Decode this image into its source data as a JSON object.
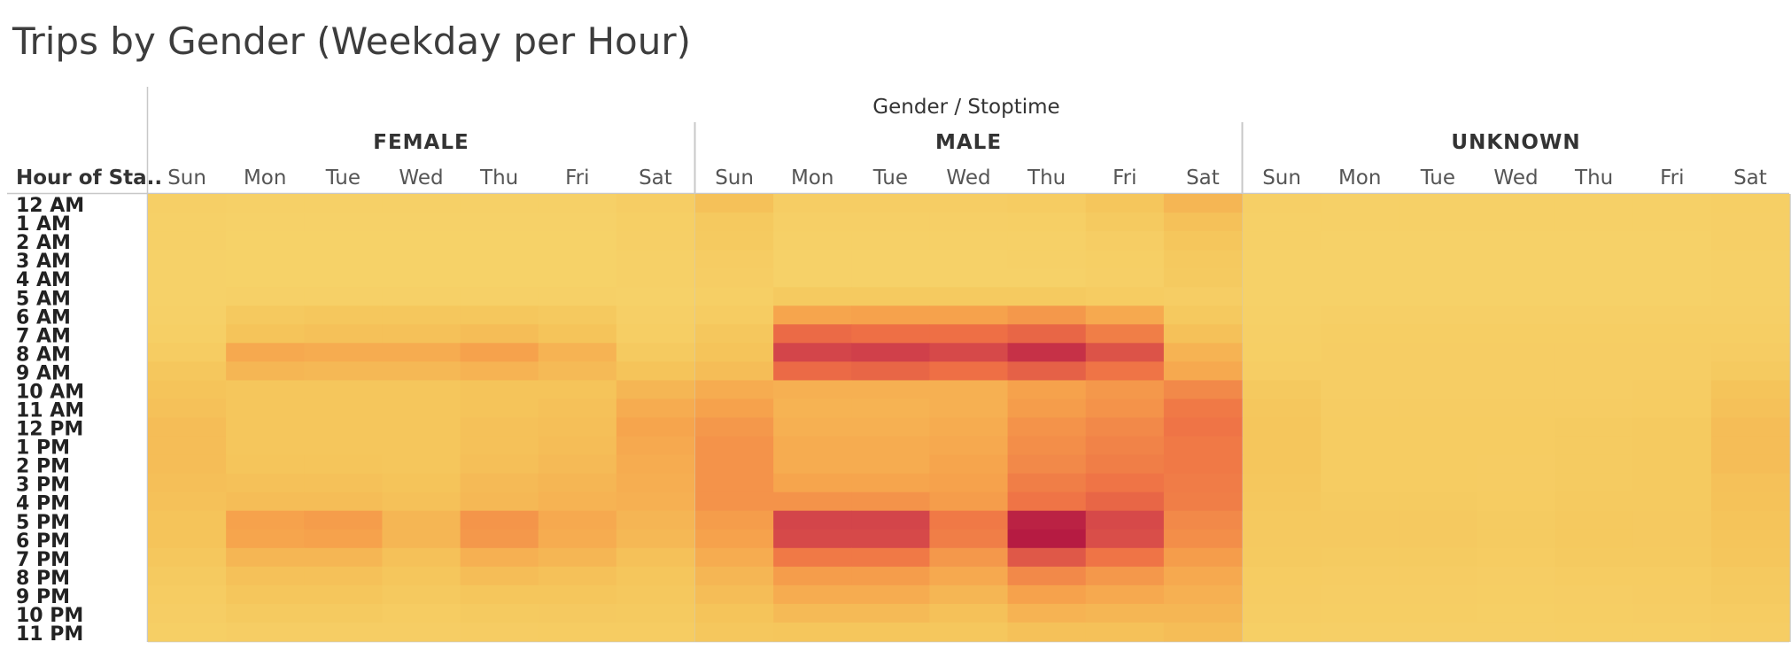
{
  "chart_data": {
    "type": "heatmap",
    "title": "Trips by Gender (Weekday per Hour)",
    "column_header": "Gender / Stoptime",
    "row_header": "Hour of Sta..",
    "groups": [
      "FEMALE",
      "MALE",
      "UNKNOWN"
    ],
    "days": [
      "Sun",
      "Mon",
      "Tue",
      "Wed",
      "Thu",
      "Fri",
      "Sat"
    ],
    "hours": [
      "12 AM",
      "1 AM",
      "2 AM",
      "3 AM",
      "4 AM",
      "5 AM",
      "6 AM",
      "7 AM",
      "8 AM",
      "9 AM",
      "10 AM",
      "11 AM",
      "12 PM",
      "1 PM",
      "2 PM",
      "3 PM",
      "4 PM",
      "5 PM",
      "6 PM",
      "7 PM",
      "8 PM",
      "9 PM",
      "10 PM",
      "11 PM"
    ],
    "value_scale": "relative intensity 0-100",
    "colors": [
      "#f6d36a",
      "#f5c45a",
      "#f6a24c",
      "#ee6f45",
      "#d0404a",
      "#b61b42"
    ],
    "values": {
      "FEMALE": [
        [
          5,
          4,
          4,
          4,
          4,
          4,
          8
        ],
        [
          4,
          3,
          3,
          3,
          3,
          3,
          6
        ],
        [
          4,
          2,
          2,
          2,
          2,
          2,
          5
        ],
        [
          3,
          2,
          2,
          2,
          2,
          2,
          4
        ],
        [
          3,
          2,
          2,
          2,
          2,
          2,
          4
        ],
        [
          3,
          4,
          4,
          4,
          4,
          4,
          3
        ],
        [
          4,
          14,
          16,
          16,
          16,
          14,
          5
        ],
        [
          6,
          20,
          22,
          22,
          24,
          20,
          7
        ],
        [
          10,
          36,
          34,
          34,
          40,
          30,
          12
        ],
        [
          16,
          28,
          27,
          27,
          30,
          26,
          20
        ],
        [
          20,
          18,
          18,
          18,
          20,
          20,
          28
        ],
        [
          22,
          17,
          17,
          17,
          20,
          22,
          34
        ],
        [
          24,
          18,
          18,
          18,
          22,
          23,
          38
        ],
        [
          24,
          18,
          18,
          18,
          22,
          24,
          36
        ],
        [
          24,
          19,
          19,
          18,
          23,
          26,
          34
        ],
        [
          23,
          22,
          22,
          20,
          26,
          28,
          33
        ],
        [
          22,
          24,
          24,
          22,
          27,
          30,
          32
        ],
        [
          20,
          40,
          42,
          28,
          45,
          36,
          29
        ],
        [
          20,
          38,
          40,
          28,
          44,
          34,
          27
        ],
        [
          16,
          28,
          28,
          22,
          32,
          28,
          22
        ],
        [
          12,
          22,
          22,
          18,
          24,
          22,
          18
        ],
        [
          10,
          18,
          18,
          14,
          18,
          18,
          15
        ],
        [
          8,
          12,
          12,
          10,
          12,
          13,
          12
        ],
        [
          6,
          8,
          8,
          8,
          9,
          10,
          10
        ]
      ],
      "MALE": [
        [
          22,
          8,
          8,
          8,
          10,
          18,
          28
        ],
        [
          14,
          5,
          5,
          5,
          6,
          12,
          22
        ],
        [
          12,
          4,
          4,
          4,
          4,
          8,
          18
        ],
        [
          9,
          3,
          3,
          3,
          4,
          6,
          14
        ],
        [
          8,
          3,
          3,
          3,
          3,
          5,
          12
        ],
        [
          6,
          12,
          12,
          12,
          12,
          10,
          8
        ],
        [
          10,
          38,
          40,
          40,
          44,
          36,
          14
        ],
        [
          16,
          62,
          60,
          60,
          64,
          54,
          22
        ],
        [
          20,
          78,
          80,
          76,
          88,
          72,
          30
        ],
        [
          24,
          62,
          64,
          60,
          66,
          58,
          36
        ],
        [
          34,
          32,
          32,
          32,
          40,
          44,
          50
        ],
        [
          40,
          30,
          30,
          32,
          42,
          46,
          56
        ],
        [
          44,
          32,
          32,
          34,
          46,
          50,
          58
        ],
        [
          46,
          34,
          34,
          36,
          48,
          52,
          56
        ],
        [
          46,
          34,
          34,
          38,
          50,
          54,
          56
        ],
        [
          46,
          38,
          38,
          40,
          54,
          58,
          55
        ],
        [
          46,
          46,
          46,
          42,
          58,
          64,
          54
        ],
        [
          42,
          78,
          78,
          56,
          96,
          76,
          50
        ],
        [
          40,
          76,
          76,
          54,
          100,
          74,
          48
        ],
        [
          34,
          56,
          56,
          44,
          70,
          58,
          42
        ],
        [
          28,
          42,
          42,
          36,
          50,
          44,
          36
        ],
        [
          24,
          34,
          34,
          28,
          40,
          36,
          32
        ],
        [
          20,
          26,
          26,
          22,
          30,
          28,
          28
        ],
        [
          16,
          18,
          18,
          16,
          22,
          22,
          24
        ]
      ],
      "UNKNOWN": [
        [
          5,
          4,
          4,
          4,
          4,
          4,
          6
        ],
        [
          4,
          4,
          4,
          4,
          4,
          4,
          5
        ],
        [
          4,
          3,
          3,
          3,
          3,
          3,
          5
        ],
        [
          3,
          3,
          3,
          3,
          3,
          3,
          4
        ],
        [
          3,
          3,
          3,
          3,
          3,
          3,
          4
        ],
        [
          3,
          3,
          3,
          3,
          3,
          3,
          4
        ],
        [
          4,
          5,
          5,
          5,
          5,
          5,
          5
        ],
        [
          5,
          7,
          7,
          7,
          7,
          7,
          7
        ],
        [
          6,
          8,
          8,
          8,
          8,
          8,
          9
        ],
        [
          8,
          8,
          8,
          8,
          8,
          8,
          12
        ],
        [
          14,
          8,
          8,
          8,
          8,
          9,
          20
        ],
        [
          16,
          9,
          9,
          9,
          9,
          10,
          22
        ],
        [
          17,
          10,
          10,
          10,
          11,
          12,
          24
        ],
        [
          17,
          10,
          10,
          10,
          11,
          12,
          24
        ],
        [
          17,
          10,
          10,
          9,
          11,
          12,
          24
        ],
        [
          16,
          10,
          10,
          9,
          11,
          12,
          22
        ],
        [
          15,
          11,
          11,
          10,
          12,
          12,
          21
        ],
        [
          14,
          13,
          13,
          11,
          14,
          13,
          20
        ],
        [
          13,
          13,
          13,
          11,
          14,
          13,
          19
        ],
        [
          12,
          11,
          11,
          10,
          12,
          12,
          17
        ],
        [
          10,
          9,
          9,
          8,
          10,
          10,
          14
        ],
        [
          9,
          8,
          8,
          7,
          8,
          9,
          12
        ],
        [
          8,
          7,
          7,
          6,
          7,
          8,
          10
        ],
        [
          6,
          5,
          5,
          5,
          6,
          6,
          8
        ]
      ]
    }
  }
}
